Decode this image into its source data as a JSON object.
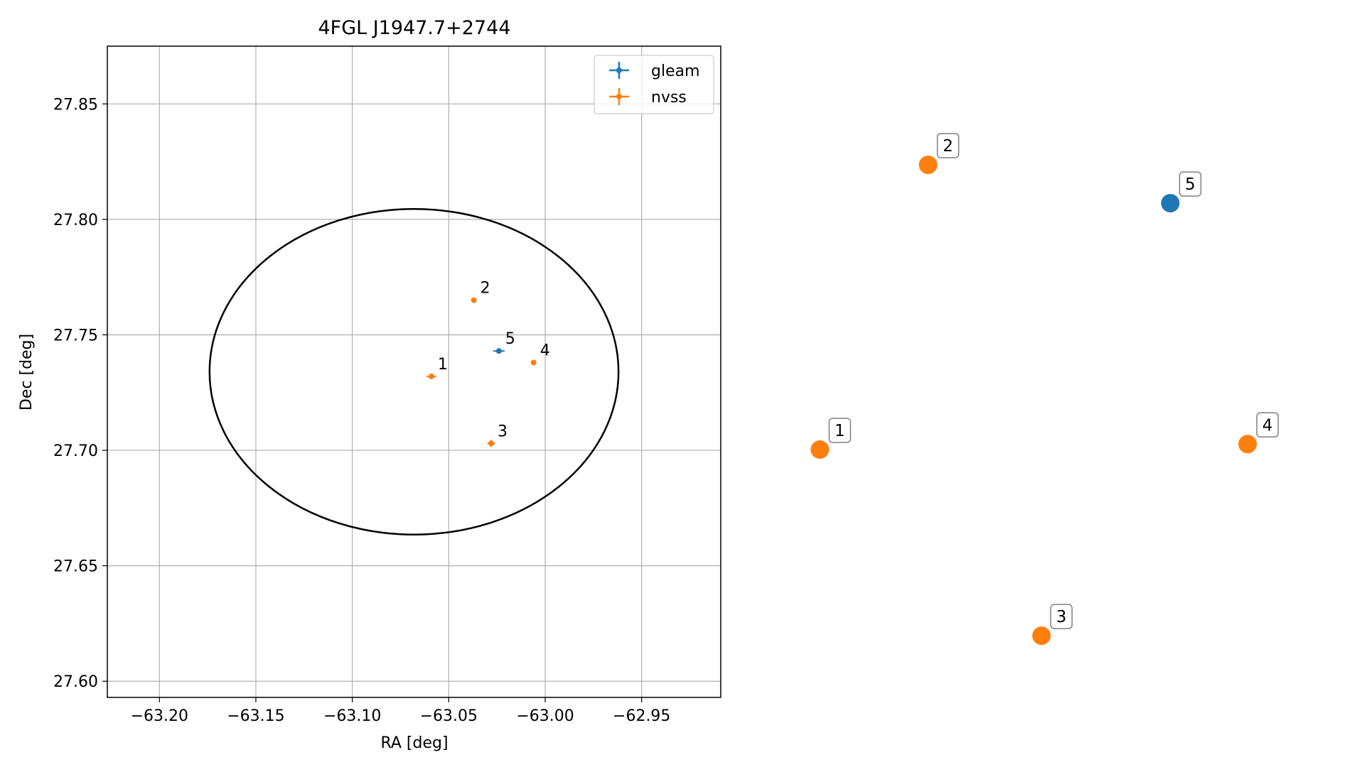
{
  "chart_data": [
    {
      "type": "scatter",
      "title": "4FGL J1947.7+2744",
      "xlabel": "RA [deg]",
      "ylabel": "Dec [deg]",
      "xlim": [
        -63.227,
        -62.909
      ],
      "ylim": [
        27.593,
        27.875
      ],
      "grid": true,
      "legend_position": "top-right",
      "x_ticks": [
        -63.2,
        -63.15,
        -63.1,
        -63.05,
        -63.0,
        -62.95
      ],
      "x_tick_labels": [
        "−63.20",
        "−63.15",
        "−63.10",
        "−63.05",
        "−63.00",
        "−62.95"
      ],
      "y_ticks": [
        27.6,
        27.65,
        27.7,
        27.75,
        27.8,
        27.85
      ],
      "y_tick_labels": [
        "27.60",
        "27.65",
        "27.70",
        "27.75",
        "27.80",
        "27.85"
      ],
      "ellipse": {
        "center_ra": -63.068,
        "center_dec": 27.734,
        "semi_axis_ra": 0.106,
        "semi_axis_dec": 0.0705
      },
      "series": [
        {
          "name": "gleam",
          "color": "#1f77b4",
          "points": [
            {
              "id": "5",
              "ra": -63.024,
              "dec": 27.743,
              "ra_err": 0.003,
              "dec_err": 0.001
            }
          ]
        },
        {
          "name": "nvss",
          "color": "#ff7f0e",
          "points": [
            {
              "id": "1",
              "ra": -63.059,
              "dec": 27.732,
              "ra_err": 0.0025,
              "dec_err": 0.001
            },
            {
              "id": "2",
              "ra": -63.037,
              "dec": 27.765,
              "ra_err": 0.001,
              "dec_err": 0.001
            },
            {
              "id": "3",
              "ra": -63.028,
              "dec": 27.703,
              "ra_err": 0.002,
              "dec_err": 0.0015
            },
            {
              "id": "4",
              "ra": -63.006,
              "dec": 27.738,
              "ra_err": 0.001,
              "dec_err": 0.001
            }
          ]
        }
      ]
    },
    {
      "type": "scatter",
      "title": "",
      "axes_visible": false,
      "xlim": [
        0,
        1
      ],
      "ylim": [
        0,
        1
      ],
      "series": [
        {
          "name": "",
          "color": "#1f77b4",
          "points": [
            {
              "id": "5",
              "x": 0.74,
              "y": 0.83
            }
          ]
        },
        {
          "name": "",
          "color": "#ff7f0e",
          "points": [
            {
              "id": "1",
              "x": 0.06,
              "y": 0.38
            },
            {
              "id": "2",
              "x": 0.27,
              "y": 0.9
            },
            {
              "id": "3",
              "x": 0.49,
              "y": 0.04
            },
            {
              "id": "4",
              "x": 0.89,
              "y": 0.39
            }
          ]
        }
      ]
    }
  ]
}
